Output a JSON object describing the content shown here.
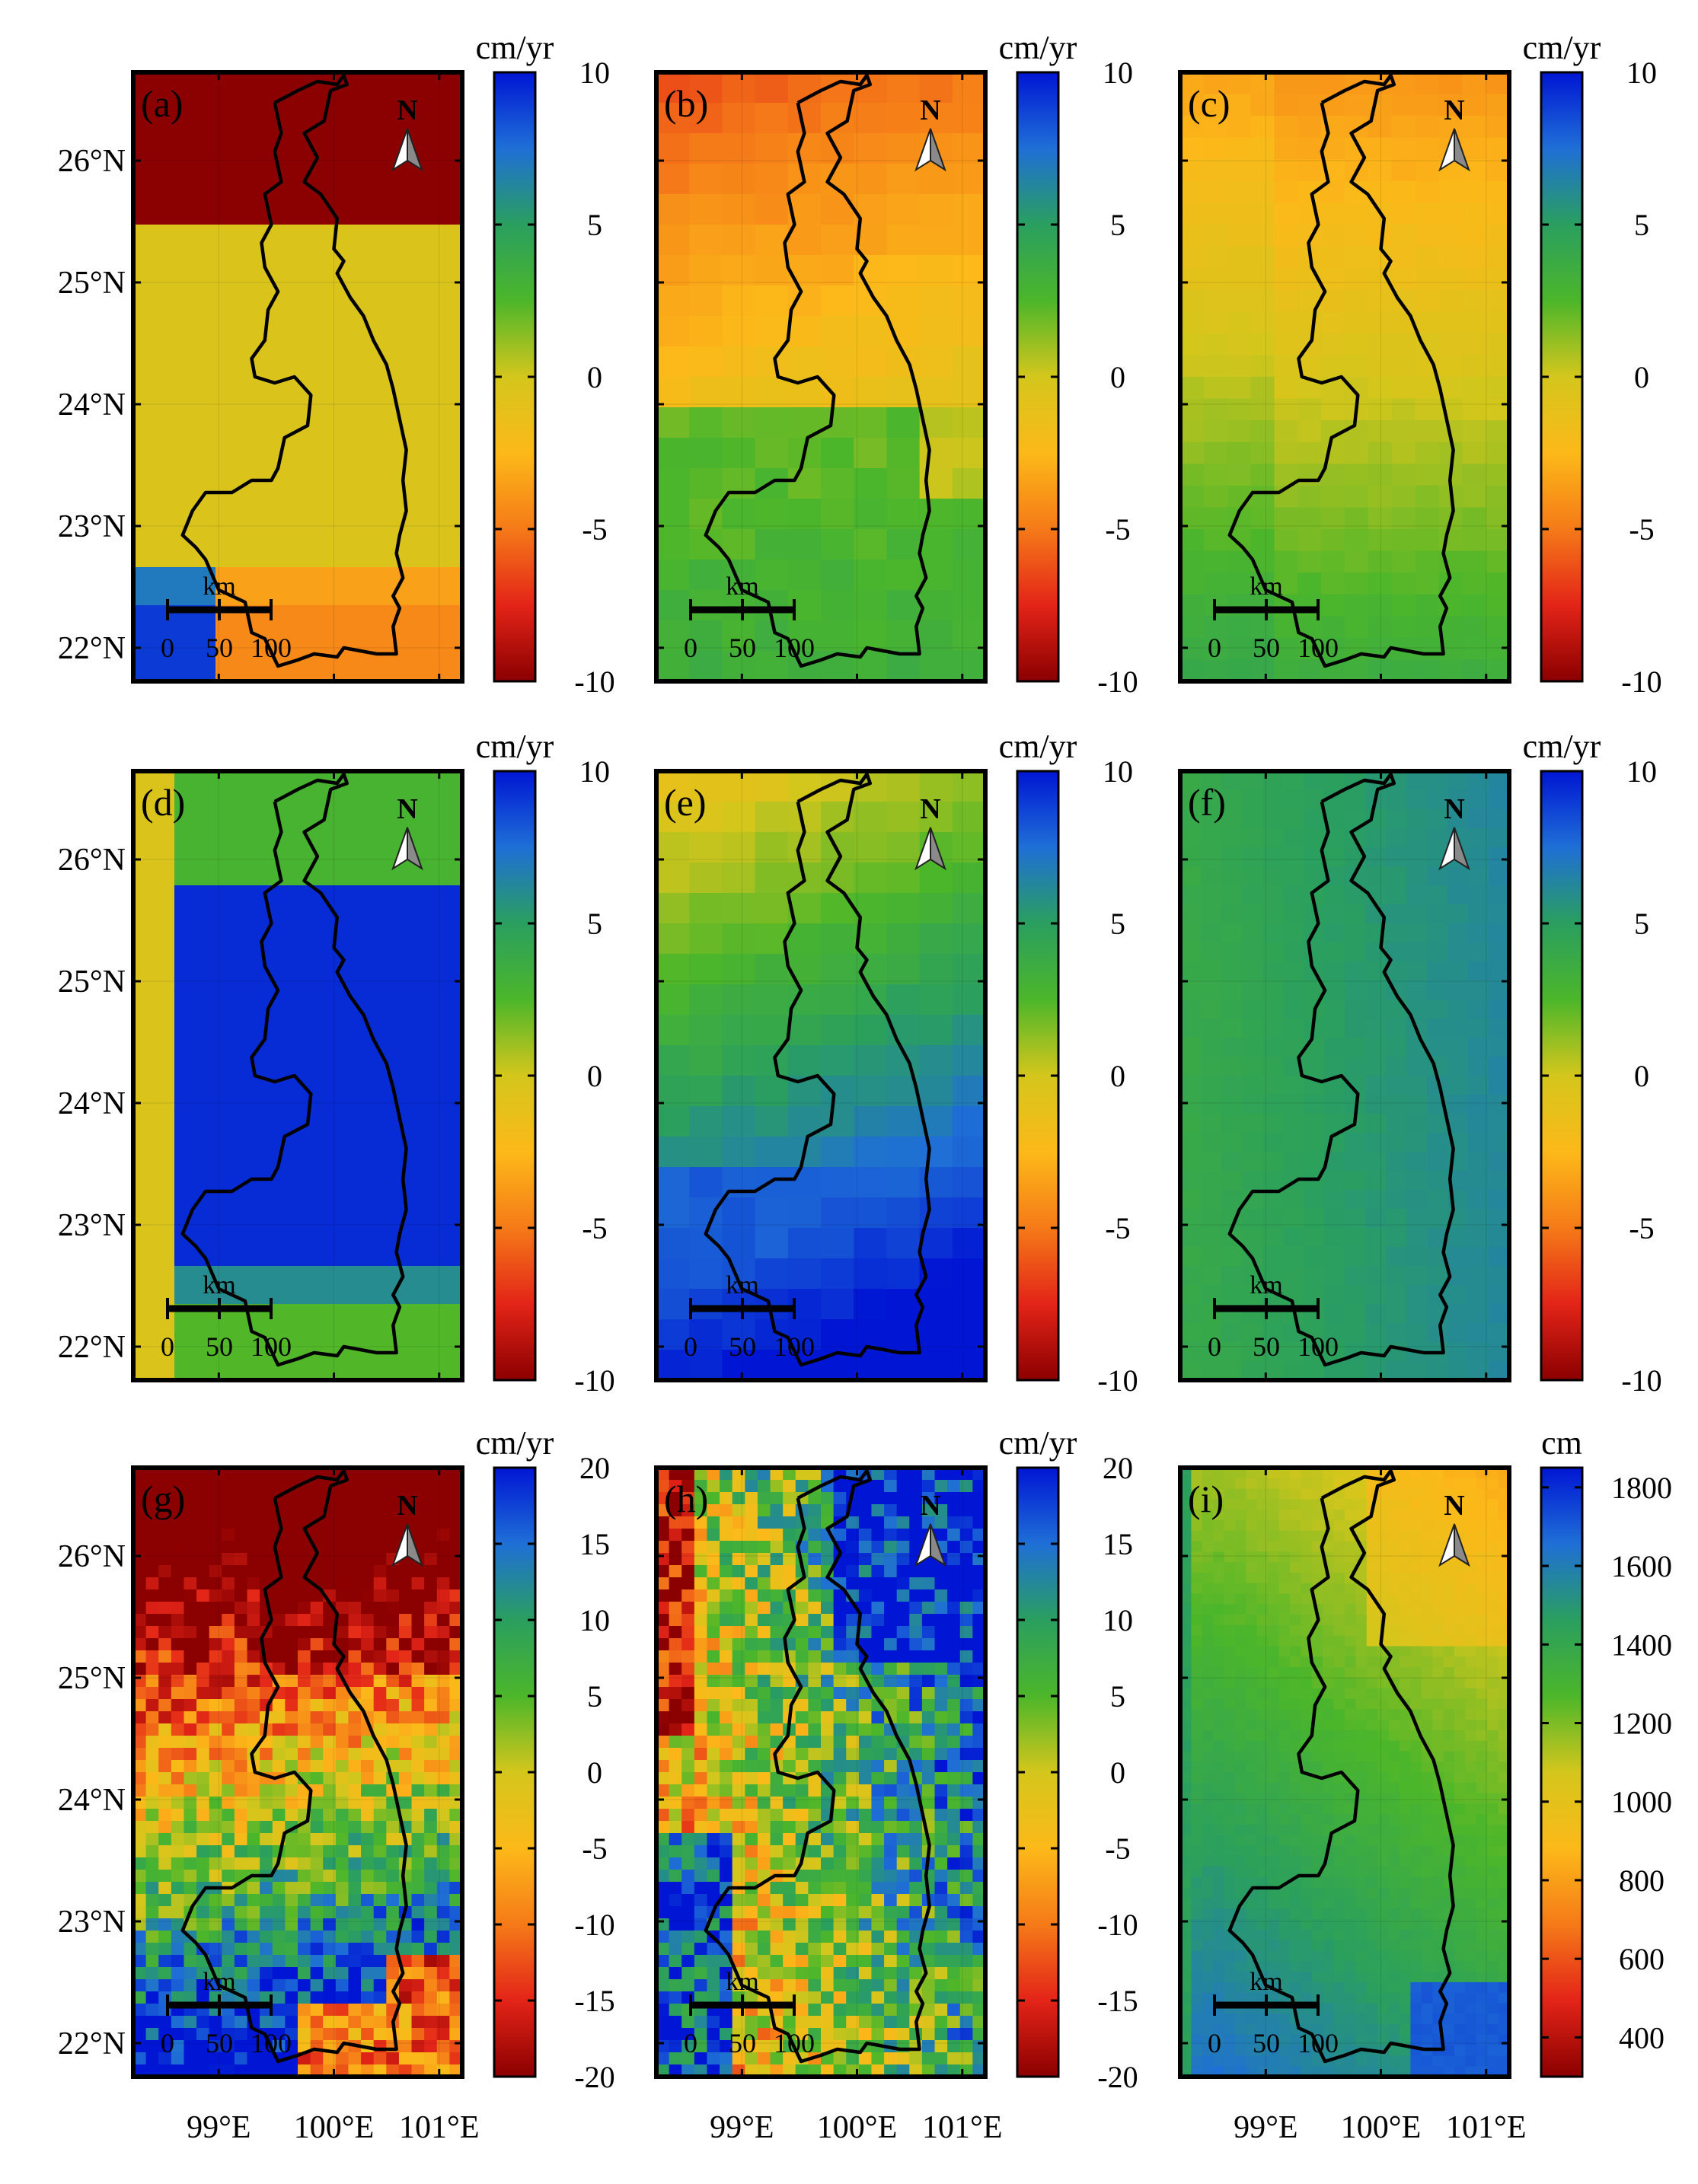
{
  "figure": {
    "lat_labels": [
      "26°N",
      "25°N",
      "24°N",
      "23°N",
      "22°N"
    ],
    "lon_labels": [
      "99°E",
      "100°E",
      "101°E"
    ],
    "scale_bar": {
      "unit": "km",
      "ticks": [
        "0",
        "50",
        "100"
      ]
    },
    "north_arrow": {
      "label": "N",
      "icon": "north-arrow-icon"
    },
    "basin_outline_color": "#000000",
    "colormap": [
      "#8b0000",
      "#e32418",
      "#f57a18",
      "#fcb919",
      "#d4c61c",
      "#4cb62a",
      "#2a9f5f",
      "#1f6fd6",
      "#0016d4"
    ]
  },
  "panels": [
    {
      "label": "(a)",
      "colorbar": {
        "unit": "cm/yr",
        "ticks": [
          "10",
          "5",
          "0",
          "-5",
          "-10"
        ],
        "min": -10,
        "max": 10
      },
      "field": "latitude bands: dark red north, yellow centre, orange/blue south"
    },
    {
      "label": "(b)",
      "colorbar": {
        "unit": "cm/yr",
        "ticks": [
          "10",
          "5",
          "0",
          "-5",
          "-10"
        ],
        "min": -10,
        "max": 10
      },
      "field": "orange north, green south"
    },
    {
      "label": "(c)",
      "colorbar": {
        "unit": "cm/yr",
        "ticks": [
          "10",
          "5",
          "0",
          "-5",
          "-10"
        ],
        "min": -10,
        "max": 10
      },
      "field": "orange north grading to green south"
    },
    {
      "label": "(d)",
      "colorbar": {
        "unit": "cm/yr",
        "ticks": [
          "10",
          "5",
          "0",
          "-5",
          "-10"
        ],
        "min": -10,
        "max": 10
      },
      "field": "blue centre, green north, yellow west"
    },
    {
      "label": "(e)",
      "colorbar": {
        "unit": "cm/yr",
        "ticks": [
          "10",
          "5",
          "0",
          "-5",
          "-10"
        ],
        "min": -10,
        "max": 10
      },
      "field": "yellow/green north, blue south"
    },
    {
      "label": "(f)",
      "colorbar": {
        "unit": "cm/yr",
        "ticks": [
          "10",
          "5",
          "0",
          "-5",
          "-10"
        ],
        "min": -10,
        "max": 10
      },
      "field": "teal-blue throughout"
    },
    {
      "label": "(g)",
      "colorbar": {
        "unit": "cm/yr",
        "ticks": [
          "20",
          "15",
          "10",
          "5",
          "0",
          "-5",
          "-10",
          "-15",
          "-20"
        ],
        "min": -20,
        "max": 20
      },
      "field": "red north, blue south, noisy"
    },
    {
      "label": "(h)",
      "colorbar": {
        "unit": "cm/yr",
        "ticks": [
          "20",
          "15",
          "10",
          "5",
          "0",
          "-5",
          "-10",
          "-15",
          "-20"
        ],
        "min": -20,
        "max": 20
      },
      "field": "red west, blue north-east, mixed south"
    },
    {
      "label": "(i)",
      "colorbar": {
        "unit": "cm",
        "ticks": [
          "1800",
          "1600",
          "1400",
          "1200",
          "1000",
          "800",
          "600",
          "400"
        ],
        "min": 300,
        "max": 1850
      },
      "field": "yellow north, green centre, blue south-west"
    }
  ]
}
